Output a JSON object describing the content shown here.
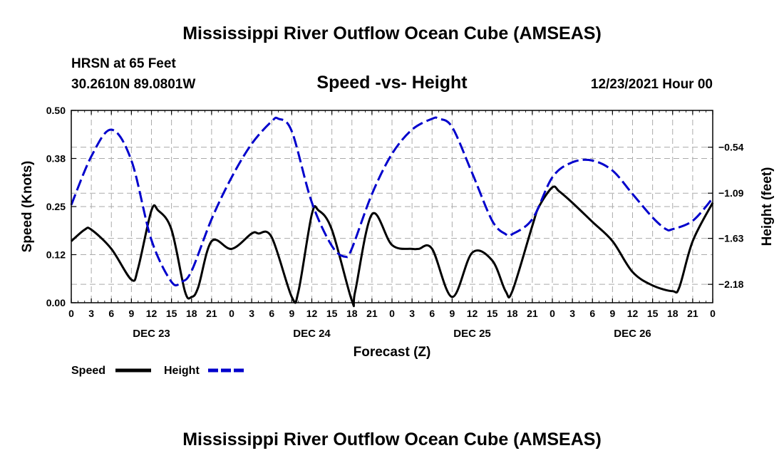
{
  "header": {
    "title": "Mississippi River Outflow Ocean Cube (AMSEAS)",
    "station": "HRSN at 65 Feet",
    "coords": "30.2610N  89.0801W",
    "chart_title": "Speed -vs- Height",
    "run_time": "12/23/2021 Hour 00"
  },
  "footer": {
    "title": "Mississippi River Outflow Ocean Cube (AMSEAS)"
  },
  "legend": {
    "speed_label": "Speed",
    "height_label": "Height"
  },
  "colors": {
    "speed": "#000000",
    "height": "#0000cc",
    "grid": "#aaaaaa"
  },
  "chart_data": {
    "type": "line",
    "title": "Speed -vs- Height",
    "xlabel": "Forecast (Z)",
    "ylabel": "Speed (Knots)",
    "y2label": "Height (feet)",
    "xlim": [
      0,
      96
    ],
    "ylim": [
      0,
      0.5
    ],
    "y2lim": [
      -2.4,
      -0.1
    ],
    "x_tick_labels": [
      "0",
      "3",
      "6",
      "9",
      "12",
      "15",
      "18",
      "21",
      "0",
      "3",
      "6",
      "9",
      "12",
      "15",
      "18",
      "21",
      "0",
      "3",
      "6",
      "9",
      "12",
      "15",
      "18",
      "21",
      "0",
      "3",
      "6",
      "9",
      "12",
      "15",
      "18",
      "21",
      "0"
    ],
    "day_labels": [
      {
        "label": "DEC 23",
        "x": 12
      },
      {
        "label": "DEC 24",
        "x": 36
      },
      {
        "label": "DEC 25",
        "x": 60
      },
      {
        "label": "DEC 26",
        "x": 84
      }
    ],
    "y_ticks": [
      {
        "value": 0.0,
        "label": "0.00"
      },
      {
        "value": 0.125,
        "label": "0.12"
      },
      {
        "value": 0.25,
        "label": "0.25"
      },
      {
        "value": 0.375,
        "label": "0.38"
      },
      {
        "value": 0.5,
        "label": "0.50"
      }
    ],
    "y2_ticks": [
      {
        "value": -0.54,
        "label": "−0.54"
      },
      {
        "value": -1.09,
        "label": "−1.09"
      },
      {
        "value": -1.63,
        "label": "−1.63"
      },
      {
        "value": -2.18,
        "label": "−2.18"
      }
    ],
    "series": [
      {
        "name": "Speed",
        "axis": "left",
        "style": "solid",
        "x": [
          0,
          2,
          3,
          6,
          9,
          10,
          12,
          13,
          15,
          17,
          18,
          19,
          21,
          24,
          27,
          28,
          30,
          33,
          34,
          36,
          37,
          39,
          42,
          42.5,
          45,
          48,
          51,
          52,
          54,
          57,
          60,
          63,
          65,
          66,
          69,
          70,
          72,
          73,
          75,
          78,
          81,
          84,
          87,
          90,
          91,
          93,
          96
        ],
        "values": [
          0.16,
          0.19,
          0.19,
          0.14,
          0.06,
          0.09,
          0.24,
          0.24,
          0.19,
          0.03,
          0.015,
          0.04,
          0.16,
          0.14,
          0.18,
          0.18,
          0.17,
          0.015,
          0.03,
          0.23,
          0.24,
          0.19,
          0.005,
          0.03,
          0.23,
          0.15,
          0.14,
          0.14,
          0.14,
          0.015,
          0.13,
          0.11,
          0.03,
          0.03,
          0.2,
          0.25,
          0.3,
          0.29,
          0.26,
          0.21,
          0.16,
          0.08,
          0.045,
          0.03,
          0.04,
          0.16,
          0.26
        ]
      },
      {
        "name": "Height",
        "axis": "right",
        "style": "dashed",
        "x": [
          0,
          3,
          6,
          9,
          12,
          15,
          16.5,
          18,
          21,
          24,
          27,
          30,
          31,
          33,
          36,
          39,
          41,
          42,
          45,
          48,
          51,
          54,
          55,
          57,
          60,
          63,
          65,
          66,
          69,
          72,
          75,
          78,
          81,
          84,
          87,
          89,
          90,
          93,
          96
        ],
        "values": [
          -1.23,
          -0.65,
          -0.33,
          -0.7,
          -1.65,
          -2.15,
          -2.15,
          -2.02,
          -1.4,
          -0.9,
          -0.5,
          -0.23,
          -0.2,
          -0.35,
          -1.2,
          -1.72,
          -1.85,
          -1.75,
          -1.1,
          -0.62,
          -0.33,
          -0.2,
          -0.2,
          -0.3,
          -0.85,
          -1.42,
          -1.58,
          -1.58,
          -1.4,
          -0.9,
          -0.72,
          -0.7,
          -0.82,
          -1.1,
          -1.38,
          -1.52,
          -1.52,
          -1.42,
          -1.15
        ]
      }
    ]
  }
}
